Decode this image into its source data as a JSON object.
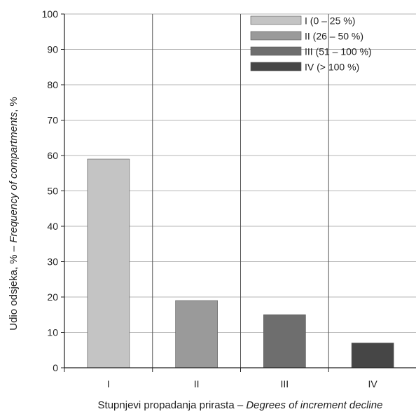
{
  "chart_data": {
    "type": "bar",
    "categories": [
      "I",
      "II",
      "III",
      "IV"
    ],
    "values": [
      59,
      19,
      15,
      7
    ],
    "colors": [
      "#c4c4c4",
      "#9a9a9a",
      "#6e6e6e",
      "#464646"
    ],
    "legend": [
      "I (0 – 25 %)",
      "II (26 – 50 %)",
      "III (51 – 100 %)",
      "IV (> 100 %)"
    ],
    "legend_position": "top-right",
    "ylabel_main": "Udio odsjeka, % – ",
    "ylabel_italic": "Frequency of compartments",
    "ylabel_suffix": ", %",
    "xlabel_main": "Stupnjevi propadanja prirasta – ",
    "xlabel_italic": "Degrees of increment decline",
    "ylim": [
      0,
      100
    ],
    "yticks": [
      0,
      10,
      20,
      30,
      40,
      50,
      60,
      70,
      80,
      90,
      100
    ],
    "grid": true
  }
}
